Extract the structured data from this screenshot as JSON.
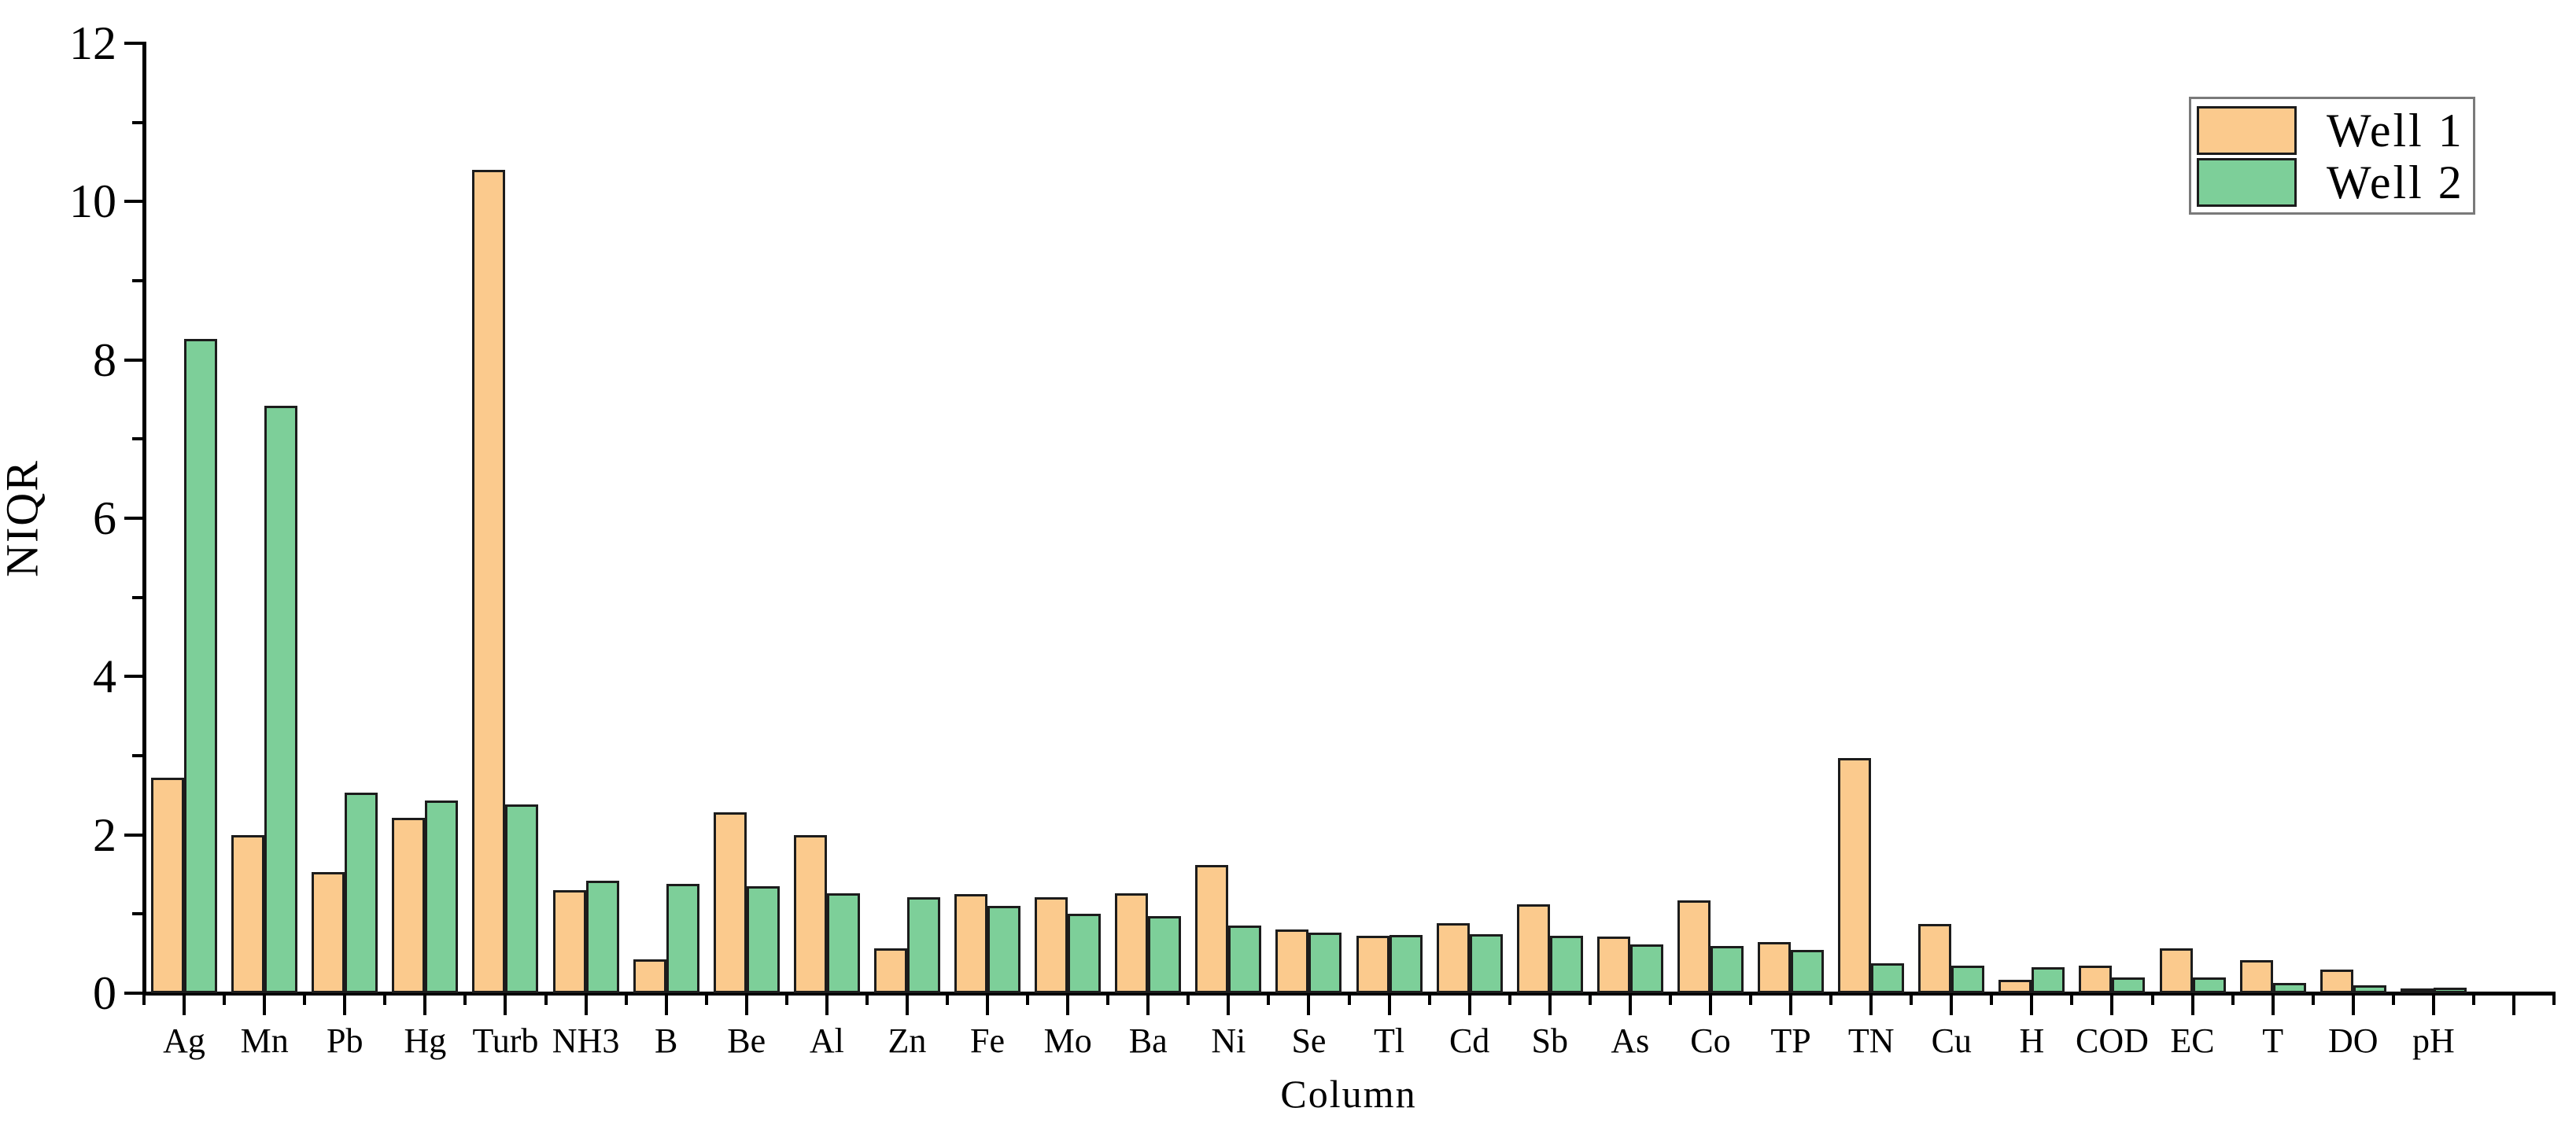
{
  "chart_data": {
    "type": "bar",
    "title": "",
    "xlabel": "Column",
    "ylabel": "NIQR",
    "ylim": [
      0,
      12
    ],
    "yticks_major": [
      0,
      2,
      4,
      6,
      8,
      10,
      12
    ],
    "yticks_minor": [
      1,
      3,
      5,
      7,
      9,
      11
    ],
    "grid": false,
    "legend_position": "top-right",
    "empty_trailing_slots": 1,
    "categories": [
      "Ag",
      "Mn",
      "Pb",
      "Hg",
      "Turb",
      "NH3",
      "B",
      "Be",
      "Al",
      "Zn",
      "Fe",
      "Mo",
      "Ba",
      "Ni",
      "Se",
      "Tl",
      "Cd",
      "Sb",
      "As",
      "Co",
      "TP",
      "TN",
      "Cu",
      "H",
      "COD",
      "EC",
      "T",
      "DO",
      "pH"
    ],
    "series": [
      {
        "name": "Well 1",
        "color": "#FBCA8D",
        "values": [
          2.72,
          2.0,
          1.53,
          2.22,
          10.4,
          1.3,
          0.43,
          2.28,
          2.0,
          0.57,
          1.25,
          1.21,
          1.26,
          1.62,
          0.8,
          0.73,
          0.88,
          1.12,
          0.72,
          1.17,
          0.65,
          2.97,
          0.87,
          0.17,
          0.35,
          0.57,
          0.42,
          0.3,
          0.02
        ]
      },
      {
        "name": "Well 2",
        "color": "#7DCF99",
        "values": [
          8.27,
          7.42,
          2.53,
          2.43,
          2.38,
          1.42,
          1.38,
          1.35,
          1.26,
          1.21,
          1.1,
          1.0,
          0.97,
          0.85,
          0.77,
          0.74,
          0.75,
          0.73,
          0.62,
          0.6,
          0.55,
          0.38,
          0.35,
          0.33,
          0.2,
          0.2,
          0.13,
          0.1,
          0.07
        ]
      }
    ],
    "axis_color": "#000000",
    "bar_outline_color": "#1c1c1c"
  }
}
